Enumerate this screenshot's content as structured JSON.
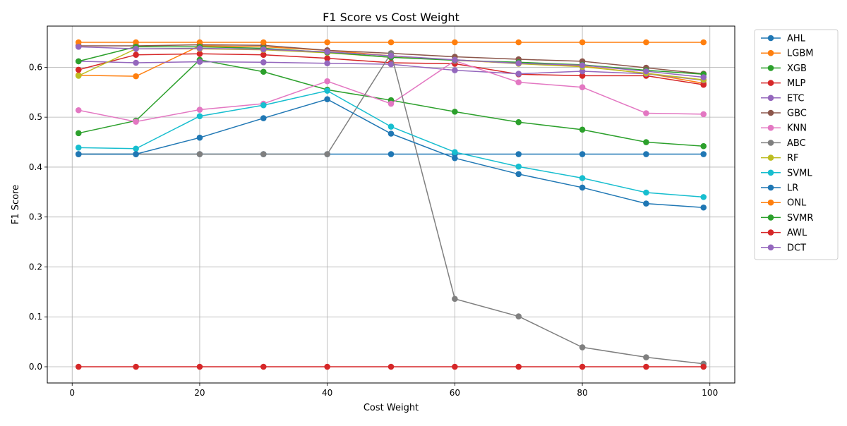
{
  "chart_data": {
    "type": "line",
    "title": "F1 Score vs Cost Weight",
    "xlabel": "Cost Weight",
    "ylabel": "F1 Score",
    "x": [
      1,
      10,
      20,
      30,
      40,
      50,
      60,
      70,
      80,
      90,
      99
    ],
    "xlim": [
      -3.9,
      103.9
    ],
    "ylim": [
      -0.0325,
      0.6825
    ],
    "xticks": [
      0,
      20,
      40,
      60,
      80,
      100
    ],
    "yticks": [
      0.0,
      0.1,
      0.2,
      0.3,
      0.4,
      0.5,
      0.6
    ],
    "ytick_labels": [
      "0.0",
      "0.1",
      "0.2",
      "0.3",
      "0.4",
      "0.5",
      "0.6"
    ],
    "grid": true,
    "legend_position": "outside-right-top",
    "series": [
      {
        "name": "AHL",
        "color": "#1f77b4",
        "values": [
          0.426,
          0.426,
          0.426,
          0.426,
          0.426,
          0.426,
          0.426,
          0.426,
          0.426,
          0.426,
          0.426
        ]
      },
      {
        "name": "LGBM",
        "color": "#ff7f0e",
        "values": [
          0.584,
          0.582,
          0.643,
          0.641,
          0.634,
          0.623,
          0.614,
          0.608,
          0.602,
          0.588,
          0.568
        ]
      },
      {
        "name": "XGB",
        "color": "#2ca02c",
        "values": [
          0.468,
          0.493,
          0.615,
          0.591,
          0.555,
          0.534,
          0.511,
          0.49,
          0.475,
          0.45,
          0.442
        ]
      },
      {
        "name": "MLP",
        "color": "#d62728",
        "values": [
          0.595,
          0.625,
          0.627,
          0.625,
          0.618,
          0.609,
          0.607,
          0.586,
          0.583,
          0.583,
          0.565
        ]
      },
      {
        "name": "ETC",
        "color": "#9467bd",
        "values": [
          0.612,
          0.609,
          0.611,
          0.61,
          0.608,
          0.606,
          0.594,
          0.587,
          0.592,
          0.587,
          0.574
        ]
      },
      {
        "name": "GBC",
        "color": "#8c564b",
        "values": [
          0.643,
          0.643,
          0.645,
          0.644,
          0.634,
          0.628,
          0.621,
          0.616,
          0.612,
          0.599,
          0.587
        ]
      },
      {
        "name": "KNN",
        "color": "#e377c2",
        "values": [
          0.514,
          0.491,
          0.515,
          0.527,
          0.572,
          0.527,
          0.613,
          0.57,
          0.56,
          0.508,
          0.506
        ]
      },
      {
        "name": "ABC",
        "color": "#7f7f7f",
        "values": [
          0.426,
          0.426,
          0.426,
          0.426,
          0.426,
          0.628,
          0.136,
          0.101,
          0.039,
          0.019,
          0.006
        ]
      },
      {
        "name": "RF",
        "color": "#bcbd22",
        "values": [
          0.583,
          0.637,
          0.637,
          0.635,
          0.629,
          0.62,
          0.615,
          0.607,
          0.601,
          0.588,
          0.575
        ]
      },
      {
        "name": "SVML",
        "color": "#17becf",
        "values": [
          0.439,
          0.437,
          0.502,
          0.524,
          0.553,
          0.481,
          0.43,
          0.401,
          0.378,
          0.349,
          0.34
        ]
      },
      {
        "name": "LR",
        "color": "#1f77b4",
        "values": [
          0.426,
          0.426,
          0.459,
          0.498,
          0.536,
          0.467,
          0.418,
          0.386,
          0.359,
          0.327,
          0.319
        ]
      },
      {
        "name": "ONL",
        "color": "#ff7f0e",
        "values": [
          0.65,
          0.65,
          0.65,
          0.65,
          0.65,
          0.65,
          0.65,
          0.65,
          0.65,
          0.65,
          0.65
        ]
      },
      {
        "name": "SVMR",
        "color": "#2ca02c",
        "values": [
          0.612,
          0.641,
          0.641,
          0.638,
          0.63,
          0.62,
          0.614,
          0.61,
          0.605,
          0.594,
          0.586
        ]
      },
      {
        "name": "AWL",
        "color": "#d62728",
        "values": [
          0.0,
          0.0,
          0.0,
          0.0,
          0.0,
          0.0,
          0.0,
          0.0,
          0.0,
          0.0,
          0.0
        ]
      },
      {
        "name": "DCT",
        "color": "#9467bd",
        "values": [
          0.641,
          0.637,
          0.638,
          0.636,
          0.631,
          0.623,
          0.615,
          0.608,
          0.604,
          0.592,
          0.58
        ]
      }
    ]
  }
}
